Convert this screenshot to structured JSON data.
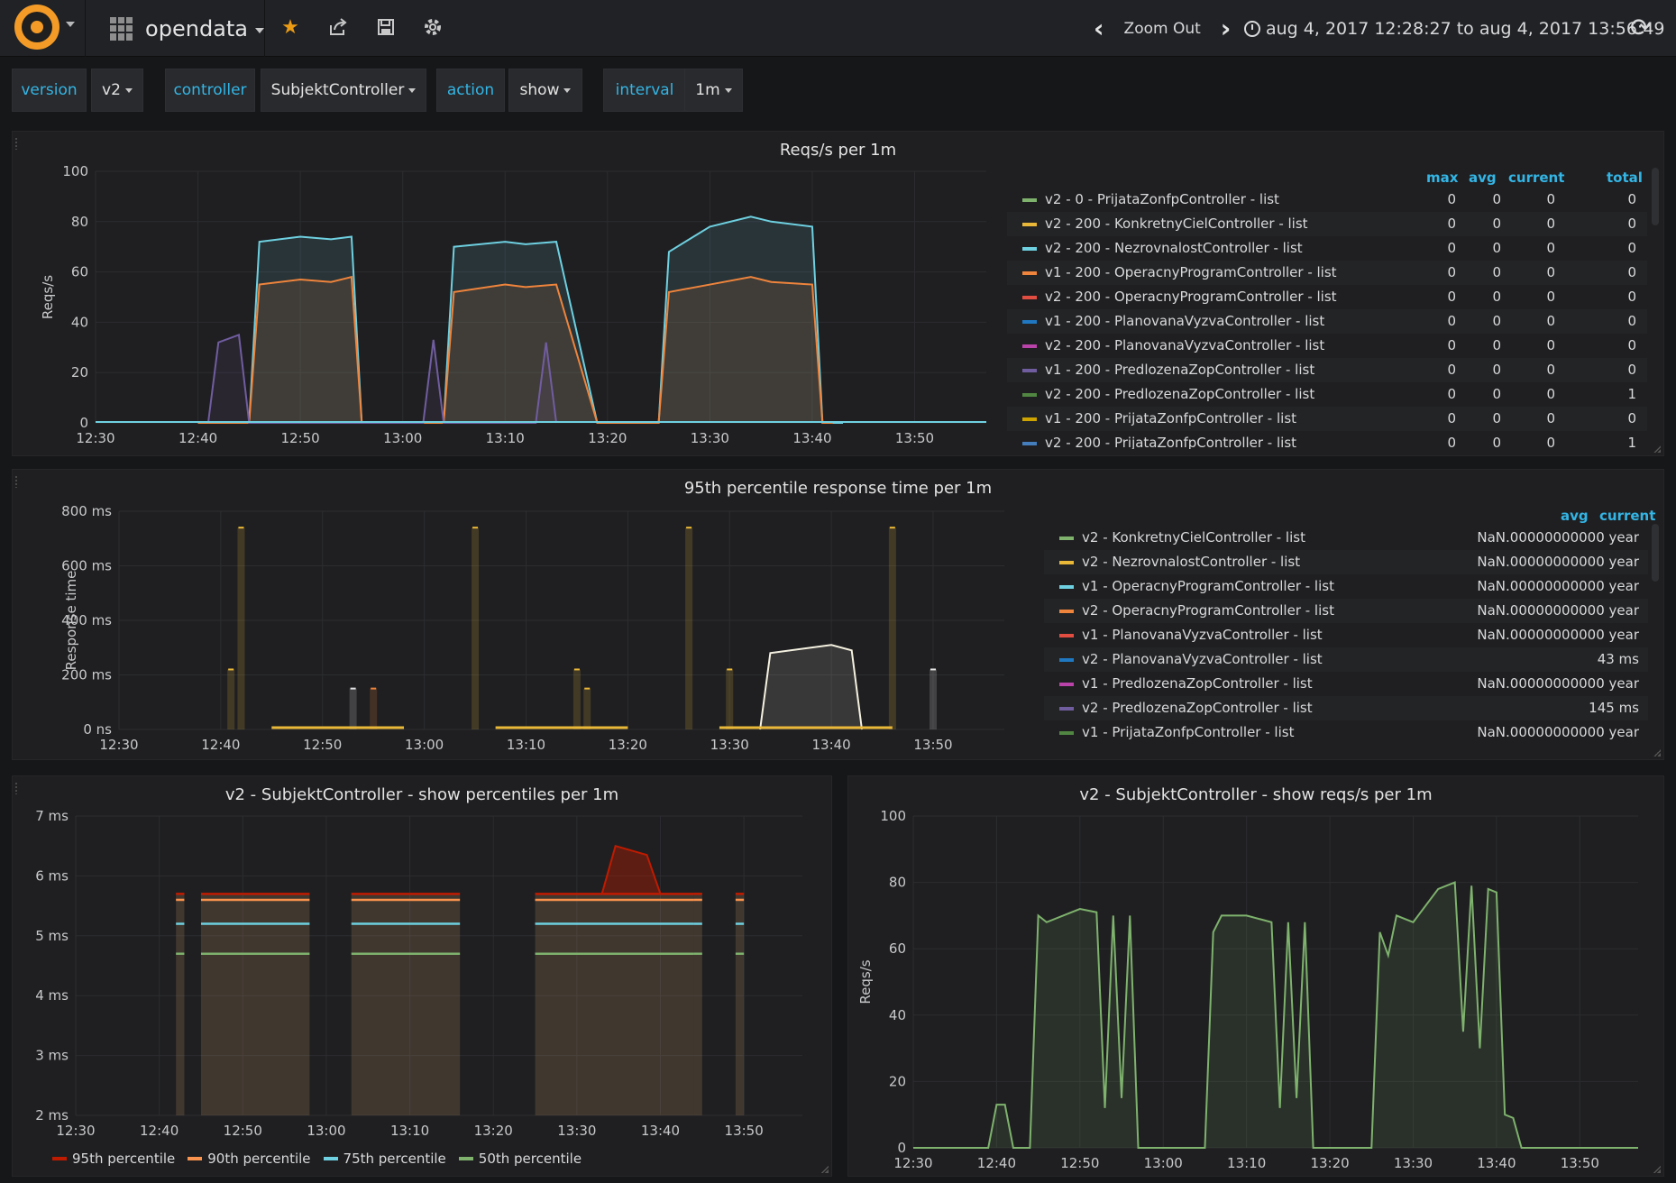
{
  "navbar": {
    "dashboard_name": "opendata",
    "zoom_out_label": "Zoom Out",
    "time_range": "aug 4, 2017 12:28:27 to aug 4, 2017 13:56:49",
    "icons": [
      "grafana-logo-icon",
      "star-icon",
      "share-icon",
      "save-icon",
      "settings-icon",
      "chevron-left-icon",
      "chevron-right-icon",
      "clock-icon",
      "refresh-icon"
    ],
    "star_color": "#eb9b14"
  },
  "template_vars": [
    {
      "label": "version",
      "value": "v2"
    },
    {
      "label": "controller",
      "value": "SubjektController"
    },
    {
      "label": "action",
      "value": "show"
    },
    {
      "label": "interval",
      "value": "1m"
    }
  ],
  "panel1": {
    "title": "Reqs/s per 1m",
    "legend_headers": {
      "max": "max",
      "avg": "avg",
      "current": "current",
      "total": "total"
    },
    "legend": [
      {
        "name": "v2 - 0 - PrijataZonfpController - list",
        "color": "#7eb26d",
        "max": "0",
        "avg": "0",
        "current": "0",
        "total": "0"
      },
      {
        "name": "v2 - 200 - KonkretnyCielController - list",
        "color": "#eab839",
        "max": "0",
        "avg": "0",
        "current": "0",
        "total": "0"
      },
      {
        "name": "v2 - 200 - NezrovnalostController - list",
        "color": "#6ed0e0",
        "max": "0",
        "avg": "0",
        "current": "0",
        "total": "0"
      },
      {
        "name": "v1 - 200 - OperacnyProgramController - list",
        "color": "#ef843c",
        "max": "0",
        "avg": "0",
        "current": "0",
        "total": "0"
      },
      {
        "name": "v2 - 200 - OperacnyProgramController - list",
        "color": "#e24d42",
        "max": "0",
        "avg": "0",
        "current": "0",
        "total": "0"
      },
      {
        "name": "v1 - 200 - PlanovanaVyzvaController - list",
        "color": "#1f78c1",
        "max": "0",
        "avg": "0",
        "current": "0",
        "total": "0"
      },
      {
        "name": "v2 - 200 - PlanovanaVyzvaController - list",
        "color": "#ba43a9",
        "max": "0",
        "avg": "0",
        "current": "0",
        "total": "0"
      },
      {
        "name": "v1 - 200 - PredlozenaZopController - list",
        "color": "#705da0",
        "max": "0",
        "avg": "0",
        "current": "0",
        "total": "0"
      },
      {
        "name": "v2 - 200 - PredlozenaZopController - list",
        "color": "#508642",
        "max": "0",
        "avg": "0",
        "current": "0",
        "total": "1"
      },
      {
        "name": "v1 - 200 - PrijataZonfpController - list",
        "color": "#cca300",
        "max": "0",
        "avg": "0",
        "current": "0",
        "total": "0"
      },
      {
        "name": "v2 - 200 - PrijataZonfpController - list",
        "color": "#447ebc",
        "max": "0",
        "avg": "0",
        "current": "0",
        "total": "1"
      }
    ],
    "chart_data": {
      "type": "area",
      "title": "Reqs/s per 1m",
      "ylabel": "Reqs/s",
      "ylim": [
        0,
        100
      ],
      "yticks": [
        "0",
        "20",
        "40",
        "60",
        "80",
        "100"
      ],
      "xticks": [
        "12:30",
        "12:40",
        "12:50",
        "13:00",
        "13:10",
        "13:20",
        "13:30",
        "13:40",
        "13:50"
      ],
      "series": [
        {
          "name": "v2 - 200 - NezrovnalostController - list",
          "color": "#6ed0e0",
          "x": [
            "12:40",
            "12:41",
            "12:45",
            "12:46",
            "12:50",
            "12:53",
            "12:55",
            "12:56",
            "13:04",
            "13:05",
            "13:10",
            "13:12",
            "13:15",
            "13:19",
            "13:25",
            "13:26",
            "13:30",
            "13:34",
            "13:36",
            "13:40",
            "13:41",
            "13:42",
            "13:43"
          ],
          "y": [
            0,
            0,
            0,
            72,
            74,
            73,
            74,
            0,
            0,
            70,
            72,
            71,
            72,
            0,
            0,
            68,
            78,
            82,
            80,
            78,
            0,
            0,
            0
          ]
        },
        {
          "name": "v1 - 200 - OperacnyProgramController - list",
          "color": "#ef843c",
          "x": [
            "12:40",
            "12:41",
            "12:45",
            "12:46",
            "12:50",
            "12:53",
            "12:55",
            "12:56",
            "13:04",
            "13:05",
            "13:10",
            "13:12",
            "13:15",
            "13:19",
            "13:25",
            "13:26",
            "13:30",
            "13:34",
            "13:36",
            "13:40",
            "13:41",
            "13:42"
          ],
          "y": [
            0,
            0,
            0,
            55,
            57,
            56,
            58,
            0,
            0,
            52,
            55,
            54,
            55,
            0,
            0,
            52,
            55,
            58,
            56,
            55,
            0,
            0
          ]
        },
        {
          "name": "v1 - 200 - PredlozenaZopController - list",
          "color": "#705da0",
          "x": [
            "12:41",
            "12:42",
            "12:44",
            "12:45",
            "13:02",
            "13:03",
            "13:04",
            "13:13",
            "13:14",
            "13:15"
          ],
          "y": [
            0,
            32,
            35,
            0,
            0,
            33,
            0,
            0,
            32,
            0
          ]
        }
      ]
    }
  },
  "panel2": {
    "title": "95th percentile response time per 1m",
    "legend_headers": {
      "avg": "avg",
      "current": "current"
    },
    "legend": [
      {
        "name": "v2 - KonkretnyCielController - list",
        "color": "#7eb26d",
        "current": "NaN.00000000000 year"
      },
      {
        "name": "v2 - NezrovnalostController - list",
        "color": "#eab839",
        "current": "NaN.00000000000 year"
      },
      {
        "name": "v1 - OperacnyProgramController - list",
        "color": "#6ed0e0",
        "current": "NaN.00000000000 year"
      },
      {
        "name": "v2 - OperacnyProgramController - list",
        "color": "#ef843c",
        "current": "NaN.00000000000 year"
      },
      {
        "name": "v1 - PlanovanaVyzvaController - list",
        "color": "#e24d42",
        "current": "NaN.00000000000 year"
      },
      {
        "name": "v2 - PlanovanaVyzvaController - list",
        "color": "#1f78c1",
        "current": "43 ms"
      },
      {
        "name": "v1 - PredlozenaZopController - list",
        "color": "#ba43a9",
        "current": "NaN.00000000000 year"
      },
      {
        "name": "v2 - PredlozenaZopController - list",
        "color": "#705da0",
        "current": "145 ms"
      },
      {
        "name": "v1 - PrijataZonfpController - list",
        "color": "#508642",
        "current": "NaN.00000000000 year"
      }
    ],
    "chart_data": {
      "type": "bar",
      "title": "95th percentile response time per 1m",
      "ylabel": "Response time",
      "ylim": [
        0,
        800
      ],
      "yticks": [
        "0 ns",
        "200 ms",
        "400 ms",
        "600 ms",
        "800 ms"
      ],
      "xticks": [
        "12:30",
        "12:40",
        "12:50",
        "13:00",
        "13:10",
        "13:20",
        "13:30",
        "13:40",
        "13:50"
      ],
      "bars": [
        {
          "x": "12:41",
          "y": 220,
          "color": "#eab839"
        },
        {
          "x": "12:42",
          "y": 740,
          "color": "#eab839"
        },
        {
          "x": "12:53",
          "y": 150,
          "color": "#e3e3e3"
        },
        {
          "x": "12:55",
          "y": 150,
          "color": "#ef843c"
        },
        {
          "x": "13:05",
          "y": 740,
          "color": "#eab839"
        },
        {
          "x": "13:15",
          "y": 220,
          "color": "#eab839"
        },
        {
          "x": "13:16",
          "y": 150,
          "color": "#eab839"
        },
        {
          "x": "13:26",
          "y": 740,
          "color": "#eab839"
        },
        {
          "x": "13:30",
          "y": 220,
          "color": "#eab839"
        },
        {
          "x": "13:46",
          "y": 740,
          "color": "#eab839"
        },
        {
          "x": "13:50",
          "y": 220,
          "color": "#e3e3e3"
        }
      ],
      "line": {
        "color": "#f4f1e0",
        "x": [
          "13:33",
          "13:34",
          "13:38",
          "13:40",
          "13:42",
          "13:43"
        ],
        "y": [
          0,
          280,
          300,
          310,
          290,
          0
        ]
      }
    }
  },
  "panel3": {
    "title": "v2 - SubjektController - show percentiles per 1m",
    "legend": [
      {
        "name": "95th percentile",
        "color": "#bf1b00"
      },
      {
        "name": "90th percentile",
        "color": "#f9934e"
      },
      {
        "name": "75th percentile",
        "color": "#6ed0e0"
      },
      {
        "name": "50th percentile",
        "color": "#7eb26d"
      }
    ],
    "chart_data": {
      "type": "area",
      "title": "v2 - SubjektController - show percentiles per 1m",
      "ylim": [
        2,
        7
      ],
      "yticks": [
        "2 ms",
        "3 ms",
        "4 ms",
        "5 ms",
        "6 ms",
        "7 ms"
      ],
      "xticks": [
        "12:30",
        "12:40",
        "12:50",
        "13:00",
        "13:10",
        "13:20",
        "13:30",
        "13:40",
        "13:50"
      ],
      "segments": [
        [
          "12:42",
          "12:43"
        ],
        [
          "12:45",
          "12:58"
        ],
        [
          "13:03",
          "13:16"
        ],
        [
          "13:25",
          "13:44"
        ],
        [
          "13:44",
          "13:45"
        ],
        [
          "13:49",
          "13:50"
        ]
      ],
      "series": [
        {
          "name": "95th percentile",
          "color": "#bf1b00",
          "value": 5.7,
          "peak": 6.5
        },
        {
          "name": "90th percentile",
          "color": "#f9934e",
          "value": 5.6
        },
        {
          "name": "75th percentile",
          "color": "#6ed0e0",
          "value": 5.2
        },
        {
          "name": "50th percentile",
          "color": "#7eb26d",
          "value": 4.7
        }
      ]
    }
  },
  "panel4": {
    "title": "v2 - SubjektController - show reqs/s per 1m",
    "chart_data": {
      "type": "area",
      "title": "v2 - SubjektController - show reqs/s per 1m",
      "ylabel": "Reqs/s",
      "ylim": [
        0,
        100
      ],
      "yticks": [
        "0",
        "20",
        "40",
        "60",
        "80",
        "100"
      ],
      "xticks": [
        "12:30",
        "12:40",
        "12:50",
        "13:00",
        "13:10",
        "13:20",
        "13:30",
        "13:40",
        "13:50"
      ],
      "series": [
        {
          "name": "reqs/s",
          "color": "#7eb26d",
          "x": [
            "12:30",
            "12:39",
            "12:40",
            "12:41",
            "12:42",
            "12:44",
            "12:45",
            "12:46",
            "12:50",
            "12:52",
            "12:53",
            "12:54",
            "12:55",
            "12:56",
            "12:57",
            "12:58",
            "13:05",
            "13:06",
            "13:07",
            "13:10",
            "13:13",
            "13:14",
            "13:15",
            "13:16",
            "13:17",
            "13:18",
            "13:25",
            "13:26",
            "13:27",
            "13:28",
            "13:30",
            "13:33",
            "13:35",
            "13:36",
            "13:37",
            "13:38",
            "13:39",
            "13:40",
            "13:41",
            "13:42",
            "13:43",
            "13:44",
            "13:57"
          ],
          "y": [
            0,
            0,
            13,
            13,
            0,
            0,
            70,
            68,
            72,
            71,
            12,
            70,
            15,
            70,
            0,
            0,
            0,
            65,
            70,
            70,
            68,
            12,
            68,
            15,
            68,
            0,
            0,
            65,
            58,
            70,
            68,
            78,
            80,
            35,
            79,
            30,
            78,
            77,
            10,
            9,
            0,
            0,
            0
          ]
        }
      ]
    }
  }
}
